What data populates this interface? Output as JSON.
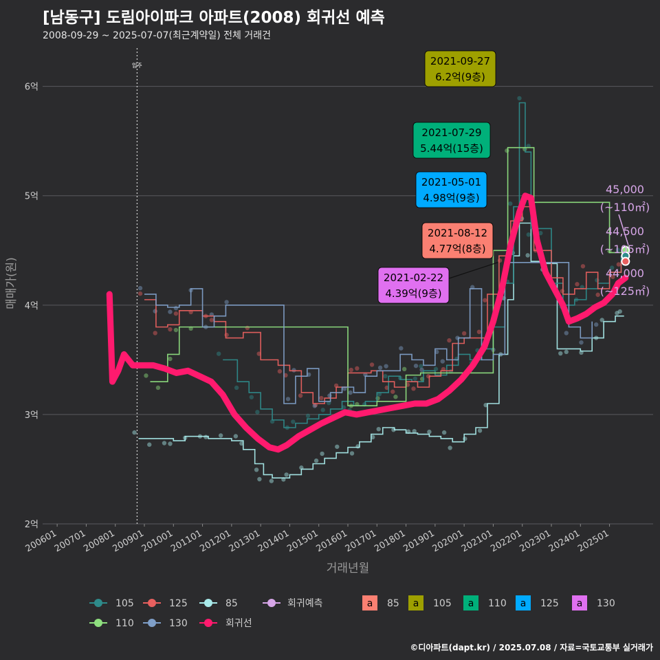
{
  "header": {
    "title": "[남동구] 도림아이파크 아파트(2008) 회귀선 예측",
    "subtitle": "2008-09-29 ~ 2025-07-07(최근계약일) 전체 거래건"
  },
  "footer": {
    "credit": "©디아파트(dapt.kr) / 2025.07.08 / 자료=국토교통부 실거래가"
  },
  "colors": {
    "background": "#2b2b2d",
    "grid": "#5a5a5e",
    "s105": "#2e8b8b",
    "s125": "#e8605f",
    "s85": "#a8eaea",
    "s110": "#8fe07f",
    "s130": "#7f9fc8",
    "regression": "#ff1a6e",
    "forecast": "#d7a6e8",
    "box85": "#fa8072",
    "box105": "#9ea000",
    "box110": "#00b07a",
    "box125": "#00aaff",
    "box130": "#e070f0"
  },
  "chart_data": {
    "type": "line",
    "title": "[남동구] 도림아이파크 아파트(2008) 회귀선 예측",
    "xlabel": "거래년월",
    "ylabel": "매매가(원)",
    "xlim": [
      2005.5,
      2026.5
    ],
    "ylim": [
      2.0,
      6.4
    ],
    "y_ticks": [
      2,
      3,
      4,
      5,
      6
    ],
    "y_tick_labels": [
      "2억",
      "3억",
      "4억",
      "5억",
      "6억"
    ],
    "x_ticks": [
      2006,
      2007,
      2008,
      2009,
      2010,
      2011,
      2012,
      2013,
      2014,
      2015,
      2016,
      2017,
      2018,
      2019,
      2020,
      2021,
      2022,
      2023,
      2024,
      2025
    ],
    "x_tick_labels": [
      "200601",
      "200701",
      "200801",
      "200901",
      "201001",
      "201101",
      "201201",
      "201301",
      "201401",
      "201501",
      "201601",
      "201701",
      "201801",
      "201901",
      "202001",
      "202101",
      "202201",
      "202301",
      "202401",
      "202501"
    ],
    "vline": {
      "x": 2008.75,
      "label": "입주"
    },
    "series": [
      {
        "name": "85",
        "key": "s85",
        "x": [
          2008.8,
          2009.2,
          2009.6,
          2010.0,
          2010.4,
          2010.8,
          2011.2,
          2011.6,
          2012.0,
          2012.4,
          2012.8,
          2013.1,
          2013.4,
          2013.7,
          2014.0,
          2014.4,
          2014.8,
          2015.2,
          2015.6,
          2016.0,
          2016.4,
          2016.8,
          2017.2,
          2017.6,
          2018.0,
          2018.4,
          2018.8,
          2019.2,
          2019.6,
          2020.0,
          2020.4,
          2020.8,
          2021.2,
          2021.5,
          2021.7,
          2021.9,
          2022.3,
          2022.7,
          2023.2,
          2023.6,
          2024.0,
          2024.4,
          2024.8,
          2025.2,
          2025.5
        ],
        "values": [
          2.78,
          2.78,
          2.78,
          2.76,
          2.8,
          2.8,
          2.78,
          2.78,
          2.76,
          2.68,
          2.55,
          2.45,
          2.42,
          2.42,
          2.45,
          2.5,
          2.55,
          2.6,
          2.65,
          2.7,
          2.75,
          2.82,
          2.88,
          2.86,
          2.83,
          2.82,
          2.8,
          2.78,
          2.75,
          2.82,
          2.88,
          3.1,
          3.55,
          4.05,
          4.45,
          4.75,
          4.4,
          4.38,
          3.6,
          3.6,
          3.58,
          3.7,
          3.85,
          3.9,
          3.9
        ]
      },
      {
        "name": "105",
        "key": "s105",
        "x": [
          2011.7,
          2012.2,
          2012.6,
          2013.0,
          2013.4,
          2013.8,
          2014.2,
          2014.6,
          2015.0,
          2015.4,
          2015.8,
          2016.2,
          2016.6,
          2017.0,
          2017.4,
          2017.8,
          2018.2,
          2018.6,
          2019.0,
          2019.4,
          2019.8,
          2020.2,
          2020.6,
          2021.0,
          2021.4,
          2021.7,
          2021.9,
          2022.1,
          2022.3,
          2022.6,
          2023.0,
          2023.4,
          2023.8,
          2024.2,
          2024.6,
          2025.0,
          2025.4
        ],
        "values": [
          3.5,
          3.3,
          3.2,
          3.05,
          2.95,
          2.88,
          2.92,
          2.96,
          3.0,
          3.05,
          3.12,
          3.08,
          3.12,
          3.2,
          3.35,
          3.32,
          3.3,
          3.4,
          3.36,
          3.45,
          3.55,
          3.5,
          3.6,
          3.8,
          4.2,
          4.9,
          5.85,
          5.4,
          4.7,
          4.7,
          4.2,
          4.0,
          4.05,
          4.15,
          4.2,
          4.3,
          4.45
        ]
      },
      {
        "name": "125",
        "key": "s125",
        "x": [
          2009.0,
          2009.4,
          2009.8,
          2010.2,
          2010.6,
          2011.0,
          2011.4,
          2011.8,
          2012.4,
          2013.0,
          2013.6,
          2014.0,
          2014.4,
          2014.8,
          2015.2,
          2015.6,
          2016.0,
          2016.4,
          2016.8,
          2017.2,
          2017.6,
          2018.0,
          2018.4,
          2018.8,
          2019.2,
          2019.6,
          2020.0,
          2020.4,
          2020.8,
          2021.2,
          2021.6,
          2022.0,
          2022.4,
          2023.0,
          2023.4,
          2023.8,
          2024.2,
          2024.6,
          2025.0,
          2025.4
        ],
        "values": [
          4.05,
          3.8,
          3.82,
          3.95,
          3.95,
          3.9,
          3.85,
          3.7,
          3.75,
          3.5,
          3.45,
          3.4,
          3.2,
          3.1,
          3.15,
          3.25,
          3.38,
          3.38,
          3.4,
          3.3,
          3.25,
          3.3,
          3.25,
          3.35,
          3.4,
          3.65,
          3.7,
          3.7,
          4.1,
          4.45,
          4.77,
          4.9,
          4.5,
          4.25,
          4.1,
          4.15,
          4.3,
          4.15,
          4.3,
          4.4
        ]
      },
      {
        "name": "110",
        "key": "s110",
        "x": [
          2009.2,
          2009.5,
          2009.8,
          2010.2,
          2010.6,
          2016.0,
          2016.4,
          2017.0,
          2017.5,
          2018.0,
          2018.5,
          2021.0,
          2021.5,
          2022.0,
          2022.4,
          2025.0,
          2025.5
        ],
        "values": [
          3.3,
          3.3,
          3.55,
          3.8,
          3.8,
          3.08,
          3.08,
          3.12,
          3.12,
          3.36,
          3.38,
          4.5,
          5.44,
          5.44,
          4.94,
          4.48,
          4.5
        ]
      },
      {
        "name": "130",
        "key": "s130",
        "x": [
          2009.0,
          2009.4,
          2009.8,
          2010.2,
          2010.6,
          2011.0,
          2011.4,
          2011.8,
          2013.8,
          2014.2,
          2014.6,
          2015.0,
          2015.4,
          2015.8,
          2016.2,
          2016.6,
          2017.0,
          2017.4,
          2017.8,
          2018.2,
          2018.6,
          2019.0,
          2019.4,
          2019.8,
          2020.2,
          2020.6,
          2021.0,
          2021.4,
          2023.6,
          2024.0,
          2024.4
        ],
        "values": [
          4.1,
          4.0,
          3.98,
          4.0,
          4.15,
          3.8,
          3.9,
          4.0,
          3.1,
          3.35,
          3.42,
          3.12,
          3.2,
          3.25,
          3.2,
          3.35,
          3.4,
          3.4,
          3.55,
          3.5,
          3.45,
          3.6,
          3.5,
          3.7,
          4.15,
          3.5,
          3.55,
          4.39,
          3.8,
          3.7,
          3.85
        ]
      },
      {
        "name": "회귀선",
        "key": "regression",
        "x": [
          2007.8,
          2007.9,
          2008.1,
          2008.3,
          2008.6,
          2008.9,
          2009.3,
          2009.7,
          2010.1,
          2010.5,
          2010.9,
          2011.3,
          2011.7,
          2012.1,
          2012.5,
          2012.9,
          2013.3,
          2013.6,
          2013.9,
          2014.3,
          2014.7,
          2015.1,
          2015.5,
          2015.9,
          2016.3,
          2016.7,
          2017.1,
          2017.5,
          2017.9,
          2018.3,
          2018.7,
          2019.1,
          2019.5,
          2019.9,
          2020.3,
          2020.7,
          2021.0,
          2021.3,
          2021.6,
          2021.9,
          2022.1,
          2022.3,
          2022.5,
          2022.8,
          2023.1,
          2023.4,
          2023.6,
          2023.9,
          2024.2,
          2024.5,
          2024.8,
          2025.1,
          2025.3,
          2025.55
        ],
        "values": [
          4.1,
          3.3,
          3.4,
          3.55,
          3.45,
          3.45,
          3.45,
          3.42,
          3.38,
          3.4,
          3.35,
          3.3,
          3.18,
          3.0,
          2.88,
          2.78,
          2.7,
          2.68,
          2.72,
          2.8,
          2.86,
          2.92,
          2.97,
          3.02,
          3.0,
          3.02,
          3.04,
          3.06,
          3.08,
          3.1,
          3.1,
          3.14,
          3.22,
          3.32,
          3.45,
          3.62,
          3.85,
          4.15,
          4.55,
          4.85,
          5.0,
          4.98,
          4.6,
          4.3,
          4.15,
          4.0,
          3.85,
          3.88,
          3.92,
          3.98,
          4.02,
          4.1,
          4.2,
          4.25
        ]
      }
    ],
    "forecast_points": [
      {
        "key": "s110",
        "x": 2025.55,
        "y": 4.5,
        "label": "45,000",
        "sublabel": "(~110㎡)"
      },
      {
        "key": "s105",
        "x": 2025.55,
        "y": 4.45,
        "label": "44,500",
        "sublabel": "(~105㎡)"
      },
      {
        "key": "s125",
        "x": 2025.55,
        "y": 4.4,
        "label": "44,000",
        "sublabel": "(~125㎡)"
      }
    ],
    "annotations": [
      {
        "date": "2021-09-27",
        "price": "6.2억(9층)",
        "x": 2021.75,
        "y": 6.2,
        "boxKey": "box105",
        "textColor": "#000000"
      },
      {
        "date": "2021-07-29",
        "price": "5.44억(15층)",
        "x": 2021.6,
        "y": 5.44,
        "boxKey": "box110",
        "textColor": "#000000"
      },
      {
        "date": "2021-05-01",
        "price": "4.98억(9층)",
        "x": 2021.3,
        "y": 4.98,
        "boxKey": "box125",
        "textColor": "#000000"
      },
      {
        "date": "2021-08-12",
        "price": "4.77억(8층)",
        "x": 2021.6,
        "y": 4.77,
        "boxKey": "box85",
        "textColor": "#000000"
      },
      {
        "date": "2021-02-22",
        "price": "4.39억(9층)",
        "x": 2021.15,
        "y": 4.39,
        "boxKey": "box130",
        "textColor": "#000000"
      }
    ],
    "legend": {
      "position": "bottom",
      "line_items": [
        {
          "label": "105",
          "key": "s105"
        },
        {
          "label": "125",
          "key": "s125"
        },
        {
          "label": "85",
          "key": "s85"
        },
        {
          "label": "110",
          "key": "s110"
        },
        {
          "label": "130",
          "key": "s130"
        },
        {
          "label": "회귀선",
          "key": "regression"
        }
      ],
      "forecast_item": {
        "label": "회귀예측",
        "key": "forecast"
      },
      "box_glyph": "a",
      "box_items": [
        {
          "label": "85",
          "key": "box85"
        },
        {
          "label": "105",
          "key": "box105"
        },
        {
          "label": "110",
          "key": "box110"
        },
        {
          "label": "125",
          "key": "box125"
        },
        {
          "label": "130",
          "key": "box130"
        }
      ]
    }
  }
}
